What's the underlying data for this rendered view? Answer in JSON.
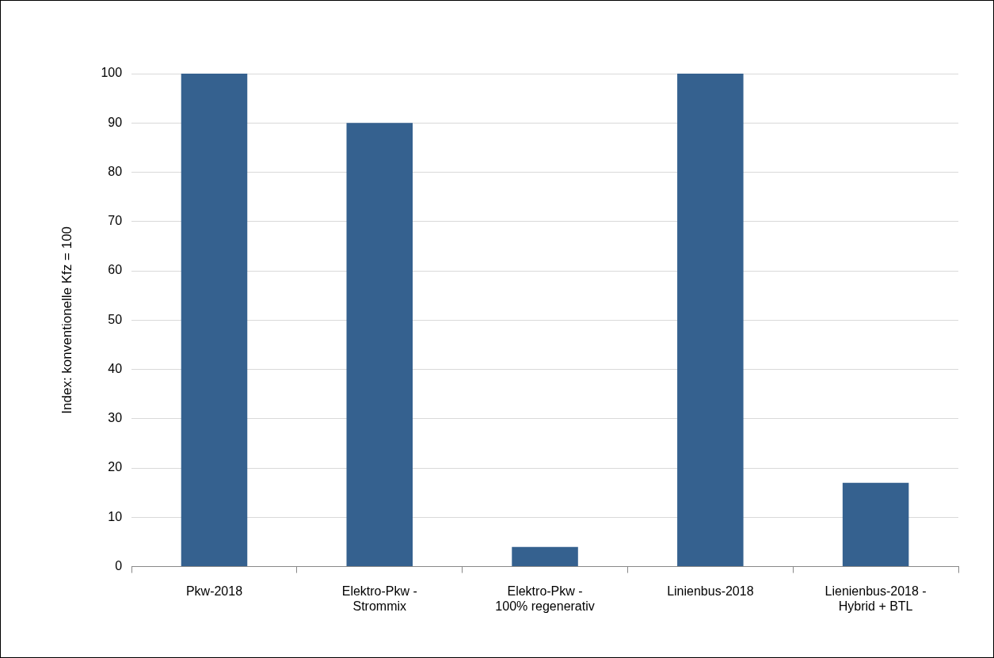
{
  "chart_data": {
    "type": "bar",
    "ylabel": "Index: konventionelle Kfz = 100",
    "categories": [
      "Pkw-2018",
      "Elektro-Pkw - Strommix",
      "Elektro-Pkw - 100% regenerativ",
      "Linienbus-2018",
      "Lienienbus-2018 - Hybrid + BTL"
    ],
    "values": [
      100,
      90,
      4,
      100,
      17
    ],
    "color": "#35618f",
    "ylim": [
      0,
      100
    ],
    "yticks": [
      0,
      10,
      20,
      30,
      40,
      50,
      60,
      70,
      80,
      90,
      100
    ],
    "grid": "y",
    "legend": false
  }
}
